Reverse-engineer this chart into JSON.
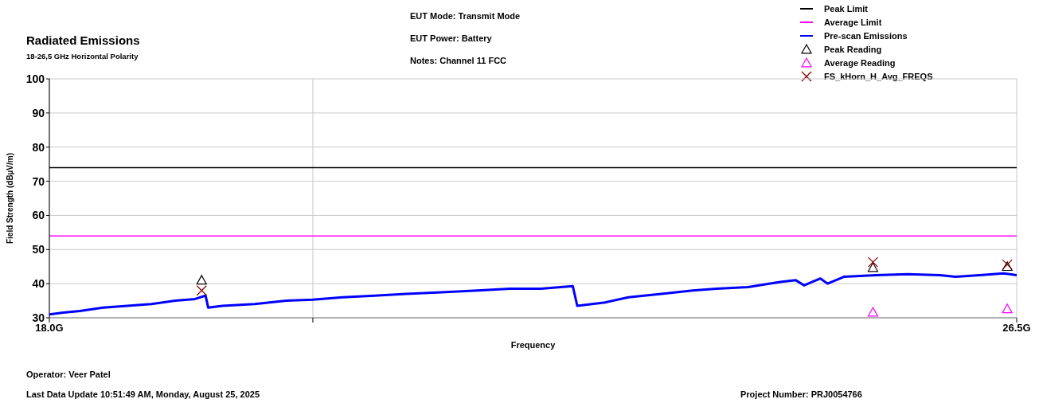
{
  "chart_data": {
    "type": "line",
    "title": "Radiated Emissions",
    "subtitle": "18-26,5 GHz Horizontal Polarity",
    "xlabel": "Frequency",
    "ylabel": "Field Strength (dBµV/m)",
    "annotations": [
      "EUT Mode: Transmit Mode",
      "EUT Power: Battery",
      "Notes: Channel 11 FCC",
      "Operator: Veer Patel",
      "Last Data Update 10:51:49 AM, Monday, August 25, 2025",
      "Project Number: PRJ0054766"
    ],
    "log": "x",
    "xlim": [
      18,
      26.5
    ],
    "xticks": [
      {
        "value": 18,
        "label": "18.0G"
      },
      {
        "value": 20,
        "label": null
      },
      {
        "value": 26.5,
        "label": "26.5G"
      }
    ],
    "ylim": [
      30,
      100
    ],
    "yticks": [
      30,
      40,
      50,
      60,
      70,
      80,
      90,
      100
    ],
    "grid": true,
    "legend": "top right",
    "series": [
      {
        "name": "Peak Limit",
        "color": "#000000",
        "marker": "none",
        "x": [
          18,
          26.5
        ],
        "values": [
          74,
          74
        ]
      },
      {
        "name": "Average Limit",
        "color": "#ff00ff",
        "marker": "none",
        "x": [
          18,
          26.5
        ],
        "values": [
          54,
          54
        ]
      },
      {
        "name": "Pre-scan Emissions",
        "color": "#0000ff",
        "marker": "none",
        "x": [
          18.0,
          18.1,
          18.22,
          18.39,
          18.57,
          18.75,
          18.93,
          19.08,
          19.16,
          19.18,
          19.29,
          19.54,
          19.79,
          20.0,
          20.24,
          20.5,
          20.76,
          21.09,
          21.36,
          21.64,
          21.91,
          22.19,
          22.23,
          22.48,
          22.69,
          22.99,
          23.28,
          23.5,
          23.8,
          24.11,
          24.26,
          24.34,
          24.5,
          24.57,
          24.73,
          25.05,
          25.37,
          25.7,
          25.86,
          26.11,
          26.36,
          26.5
        ],
        "values": [
          31,
          31.5,
          32,
          33,
          33.5,
          34,
          35,
          35.5,
          36.5,
          33,
          33.5,
          34,
          35,
          35.3,
          36,
          36.5,
          37,
          37.5,
          38,
          38.5,
          38.5,
          39.3,
          33.5,
          34.5,
          36,
          37,
          38,
          38.5,
          39,
          40.5,
          41,
          39.5,
          41.5,
          40,
          42,
          42.5,
          42.8,
          42.5,
          42,
          42.5,
          43,
          42.5
        ]
      },
      {
        "name": "Peak Reading",
        "type": "scatter",
        "color": "#000000",
        "marker": "triangle",
        "x": [
          19.13,
          25.02,
          26.4
        ],
        "values": [
          41,
          44.7,
          45
        ]
      },
      {
        "name": "Average Reading",
        "type": "scatter",
        "color": "#ff00ff",
        "marker": "triangle",
        "x": [
          25.02,
          26.4
        ],
        "values": [
          31.6,
          32.6
        ]
      },
      {
        "name": "FS_kHorn_H_Avg_FREQS",
        "type": "scatter",
        "color": "#8b0000",
        "marker": "cross",
        "x": [
          19.13,
          25.02,
          26.4
        ],
        "values": [
          38,
          46.3,
          45.6
        ]
      }
    ]
  }
}
